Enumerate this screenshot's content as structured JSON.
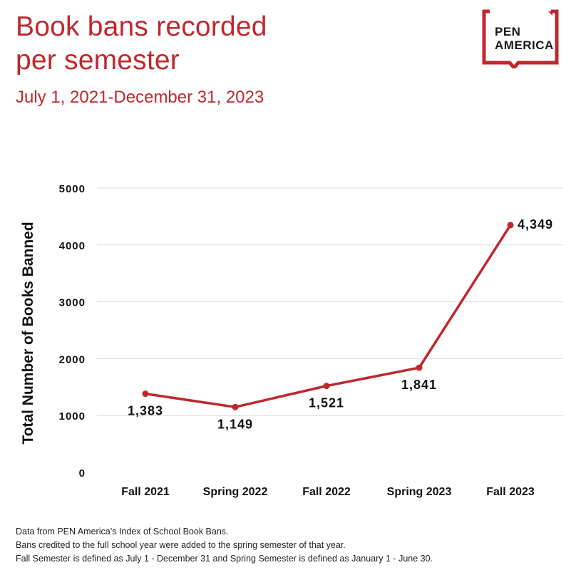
{
  "header": {
    "title_line1": "Book bans recorded",
    "title_line2": "per semester",
    "subtitle": "July 1, 2021-December 31, 2023"
  },
  "logo": {
    "line1": "PEN",
    "line2": "AMERICA",
    "color": "#c0272d"
  },
  "colors": {
    "accent": "#c0272d",
    "line": "#c0272d",
    "grid": "#d9d9d9",
    "text": "#111111"
  },
  "chart_data": {
    "type": "line",
    "categories": [
      "Fall 2021",
      "Spring 2022",
      "Fall 2022",
      "Spring 2023",
      "Fall 2023"
    ],
    "series": [
      {
        "values": [
          1383,
          1149,
          1521,
          1841,
          4349
        ],
        "labels": [
          "1,383",
          "1,149",
          "1,521",
          "1,841",
          "4,349"
        ]
      }
    ],
    "ylabel": "Total Number of Books Banned",
    "ylim": [
      0,
      5000
    ],
    "yticks": [
      0,
      1000,
      2000,
      3000,
      4000,
      5000
    ],
    "grid": true
  },
  "notes": [
    "Data from PEN America’s Index of School Book Bans.",
    "Bans credited to the full school year were added to the spring semester of that year.",
    "Fall Semester is defined as July 1 - December 31 and Spring Semester is defined as January 1 - June 30."
  ]
}
